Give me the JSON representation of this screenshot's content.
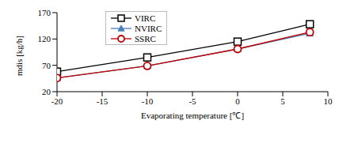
{
  "chart_data": {
    "type": "line",
    "x_label": "Evaporating temperature [℃]",
    "y_label": "mdis [kg/h]",
    "x": [
      -20,
      -10,
      0,
      8
    ],
    "xlim": [
      -20,
      10
    ],
    "xticks": [
      -20,
      -15,
      -10,
      -5,
      0,
      5,
      10
    ],
    "ylim": [
      20,
      170
    ],
    "yticks": [
      20,
      70,
      120,
      170
    ],
    "grid": false,
    "legend": "upper left",
    "series": [
      {
        "name": "VIRC",
        "color": "#000000",
        "marker": "square",
        "values": [
          58,
          85,
          115,
          148
        ]
      },
      {
        "name": "NVIRC",
        "color": "#4a7ebb",
        "marker": "triangle",
        "values": [
          46,
          69,
          101,
          131
        ]
      },
      {
        "name": "SSRC",
        "color": "#c00000",
        "marker": "circle",
        "values": [
          46,
          69,
          101,
          133
        ]
      }
    ]
  }
}
